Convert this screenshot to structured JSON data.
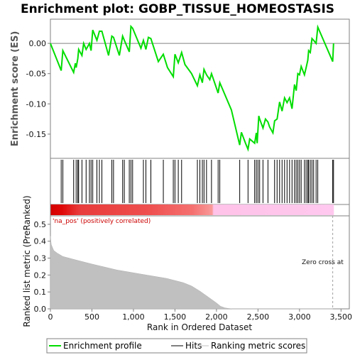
{
  "chart_data": {
    "type": "line",
    "title": "Enrichment plot: GOBP_TISSUE_HOMEOSTASIS",
    "panels": {
      "es": {
        "ylabel": "Enrichment score (ES)",
        "ylim": [
          -0.19,
          0.04
        ],
        "yticks": [
          "0.00",
          "-0.05",
          "-0.10",
          "-0.15"
        ],
        "ytick_values": [
          0.0,
          -0.05,
          -0.1,
          -0.15
        ]
      },
      "metric": {
        "ylabel": "Ranked list metric (PreRanked)",
        "ylim": [
          0.0,
          0.55
        ],
        "yticks": [
          "0.0",
          "0.1",
          "0.2",
          "0.3",
          "0.4",
          "0.5"
        ],
        "ytick_values": [
          0.0,
          0.1,
          0.2,
          0.3,
          0.4,
          0.5
        ]
      }
    },
    "xlabel": "Rank in Ordered Dataset",
    "xlim": [
      0,
      3600
    ],
    "xticks": [
      "0",
      "500",
      "1,000",
      "1,500",
      "2,000",
      "2,500",
      "3,000",
      "3,500"
    ],
    "xtick_values": [
      0,
      500,
      1000,
      1500,
      2000,
      2500,
      3000,
      3500
    ],
    "annotations": {
      "positive": "'na_pos' (positively correlated)",
      "zero_cross": "Zero cross at"
    },
    "zero_cross_rank": 3400,
    "max_rank": 3410,
    "series": [
      {
        "name": "Enrichment profile",
        "color": "#00dd00",
        "x": [
          0,
          130,
          150,
          280,
          300,
          310,
          330,
          340,
          380,
          400,
          430,
          470,
          490,
          510,
          560,
          590,
          620,
          700,
          740,
          760,
          830,
          870,
          890,
          950,
          970,
          990,
          1090,
          1120,
          1150,
          1180,
          1210,
          1300,
          1360,
          1410,
          1480,
          1500,
          1540,
          1580,
          1620,
          1700,
          1770,
          1800,
          1830,
          1850,
          1880,
          1920,
          1940,
          2020,
          2040,
          2180,
          2280,
          2300,
          2350,
          2380,
          2400,
          2460,
          2480,
          2490,
          2510,
          2520,
          2560,
          2590,
          2620,
          2640,
          2680,
          2700,
          2730,
          2760,
          2790,
          2820,
          2850,
          2880,
          2910,
          2940,
          2960,
          2980,
          3000,
          3020,
          3060,
          3080,
          3100,
          3110,
          3130,
          3150,
          3170,
          3200,
          3220,
          3400,
          3410
        ],
        "y": [
          0.0,
          -0.045,
          -0.012,
          -0.048,
          -0.033,
          -0.04,
          -0.025,
          -0.01,
          -0.02,
          0.0,
          -0.01,
          0.0,
          -0.012,
          0.022,
          0.005,
          0.02,
          0.02,
          -0.02,
          0.012,
          0.01,
          -0.02,
          0.012,
          0.005,
          -0.014,
          0.028,
          0.025,
          -0.008,
          0.005,
          -0.01,
          0.01,
          0.008,
          -0.03,
          -0.018,
          -0.04,
          -0.055,
          -0.018,
          -0.032,
          -0.015,
          -0.035,
          -0.05,
          -0.07,
          -0.052,
          -0.065,
          -0.043,
          -0.052,
          -0.06,
          -0.05,
          -0.082,
          -0.065,
          -0.11,
          -0.168,
          -0.147,
          -0.165,
          -0.175,
          -0.158,
          -0.165,
          -0.148,
          -0.165,
          -0.12,
          -0.125,
          -0.14,
          -0.125,
          -0.13,
          -0.138,
          -0.148,
          -0.128,
          -0.125,
          -0.097,
          -0.112,
          -0.09,
          -0.098,
          -0.09,
          -0.108,
          -0.068,
          -0.078,
          -0.05,
          -0.052,
          -0.038,
          -0.052,
          -0.04,
          -0.028,
          -0.012,
          -0.015,
          0.008,
          0.005,
          0.0,
          0.027,
          -0.03,
          0.0
        ]
      },
      {
        "name": "Hits",
        "color": "#000000",
        "positions": [
          130,
          150,
          280,
          310,
          330,
          340,
          380,
          430,
          470,
          490,
          510,
          560,
          590,
          620,
          740,
          760,
          870,
          890,
          950,
          970,
          990,
          1120,
          1150,
          1210,
          1360,
          1480,
          1500,
          1540,
          1580,
          1770,
          1800,
          1830,
          1850,
          1880,
          1940,
          2020,
          2040,
          2280,
          2380,
          2460,
          2480,
          2500,
          2520,
          2560,
          2620,
          2700,
          2730,
          2760,
          2790,
          2820,
          2850,
          2880,
          2910,
          2940,
          2960,
          2980,
          3000,
          3020,
          3060,
          3080,
          3100,
          3110,
          3130,
          3150,
          3170,
          3200,
          3220,
          3400,
          3410
        ]
      },
      {
        "name": "Ranking metric scores",
        "color": "#c0c0c0",
        "x": [
          0,
          10,
          40,
          80,
          150,
          300,
          500,
          800,
          1100,
          1400,
          1600,
          1700,
          1800,
          1900,
          2000,
          2050,
          2100,
          2150,
          2200,
          2300,
          3400
        ],
        "y": [
          0.43,
          0.38,
          0.345,
          0.33,
          0.31,
          0.29,
          0.265,
          0.23,
          0.205,
          0.18,
          0.155,
          0.135,
          0.105,
          0.07,
          0.035,
          0.015,
          0.006,
          0.002,
          0.0,
          0.0,
          0.0
        ]
      }
    ],
    "legend": {
      "placement": "bottom",
      "entries": [
        "Enrichment profile",
        "Hits",
        "Ranking metric scores"
      ]
    }
  }
}
